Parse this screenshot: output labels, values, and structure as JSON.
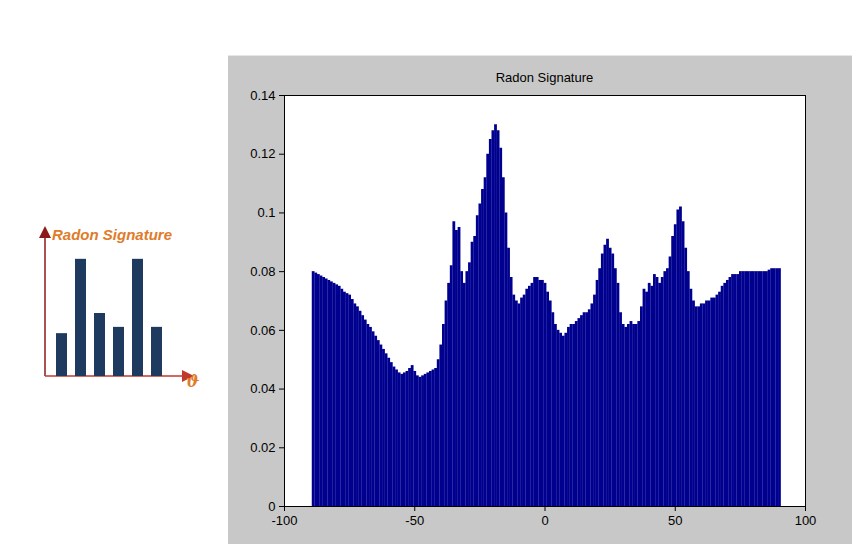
{
  "chart_data": [
    {
      "type": "bar",
      "title": "Radon Signature",
      "color": "#00008f",
      "xlim": [
        -100,
        100
      ],
      "xticks": [
        -100,
        -50,
        0,
        50,
        100
      ],
      "ylim": [
        0,
        0.14
      ],
      "yticks": [
        0,
        0.02,
        0.04,
        0.06,
        0.08,
        0.1,
        0.12,
        0.14
      ],
      "x": [
        -89,
        -88,
        -87,
        -86,
        -85,
        -84,
        -83,
        -82,
        -81,
        -80,
        -79,
        -78,
        -77,
        -76,
        -75,
        -74,
        -73,
        -72,
        -71,
        -70,
        -69,
        -68,
        -67,
        -66,
        -65,
        -64,
        -63,
        -62,
        -61,
        -60,
        -59,
        -58,
        -57,
        -56,
        -55,
        -54,
        -53,
        -52,
        -51,
        -50,
        -49,
        -48,
        -47,
        -46,
        -45,
        -44,
        -43,
        -42,
        -41,
        -40,
        -39,
        -38,
        -37,
        -36,
        -35,
        -34,
        -33,
        -32,
        -31,
        -30,
        -29,
        -28,
        -27,
        -26,
        -25,
        -24,
        -23,
        -22,
        -21,
        -20,
        -19,
        -18,
        -17,
        -16,
        -15,
        -14,
        -13,
        -12,
        -11,
        -10,
        -9,
        -8,
        -7,
        -6,
        -5,
        -4,
        -3,
        -2,
        -1,
        0,
        1,
        2,
        3,
        4,
        5,
        6,
        7,
        8,
        9,
        10,
        11,
        12,
        13,
        14,
        15,
        16,
        17,
        18,
        19,
        20,
        21,
        22,
        23,
        24,
        25,
        26,
        27,
        28,
        29,
        30,
        31,
        32,
        33,
        34,
        35,
        36,
        37,
        38,
        39,
        40,
        41,
        42,
        43,
        44,
        45,
        46,
        47,
        48,
        49,
        50,
        51,
        52,
        53,
        54,
        55,
        56,
        57,
        58,
        59,
        60,
        61,
        62,
        63,
        64,
        65,
        66,
        67,
        68,
        69,
        70,
        71,
        72,
        73,
        74,
        75,
        76,
        77,
        78,
        79,
        80,
        81,
        82,
        83,
        84,
        85,
        86,
        87,
        88,
        89,
        90
      ],
      "values": [
        0.08,
        0.0795,
        0.079,
        0.0785,
        0.078,
        0.0775,
        0.077,
        0.0765,
        0.076,
        0.0755,
        0.075,
        0.074,
        0.073,
        0.0725,
        0.072,
        0.0705,
        0.069,
        0.068,
        0.0665,
        0.065,
        0.0635,
        0.062,
        0.061,
        0.0595,
        0.058,
        0.0565,
        0.055,
        0.0535,
        0.052,
        0.0505,
        0.049,
        0.0475,
        0.0465,
        0.0455,
        0.045,
        0.0455,
        0.046,
        0.047,
        0.048,
        0.046,
        0.0445,
        0.044,
        0.0445,
        0.045,
        0.0455,
        0.046,
        0.0465,
        0.047,
        0.05,
        0.055,
        0.062,
        0.07,
        0.076,
        0.082,
        0.097,
        0.094,
        0.095,
        0.08,
        0.076,
        0.08,
        0.083,
        0.09,
        0.092,
        0.099,
        0.103,
        0.108,
        0.112,
        0.12,
        0.125,
        0.128,
        0.13,
        0.128,
        0.122,
        0.112,
        0.1,
        0.088,
        0.078,
        0.072,
        0.07,
        0.069,
        0.071,
        0.072,
        0.074,
        0.075,
        0.076,
        0.078,
        0.078,
        0.077,
        0.077,
        0.076,
        0.073,
        0.07,
        0.066,
        0.062,
        0.06,
        0.059,
        0.058,
        0.059,
        0.061,
        0.062,
        0.062,
        0.063,
        0.064,
        0.065,
        0.066,
        0.066,
        0.067,
        0.069,
        0.072,
        0.077,
        0.081,
        0.086,
        0.089,
        0.091,
        0.088,
        0.086,
        0.081,
        0.076,
        0.066,
        0.062,
        0.061,
        0.062,
        0.063,
        0.062,
        0.062,
        0.063,
        0.068,
        0.074,
        0.073,
        0.076,
        0.075,
        0.079,
        0.078,
        0.076,
        0.078,
        0.08,
        0.081,
        0.085,
        0.092,
        0.096,
        0.101,
        0.102,
        0.097,
        0.088,
        0.08,
        0.074,
        0.07,
        0.068,
        0.068,
        0.069,
        0.069,
        0.07,
        0.07,
        0.071,
        0.071,
        0.072,
        0.073,
        0.075,
        0.076,
        0.077,
        0.078,
        0.079,
        0.079,
        0.079,
        0.08,
        0.08,
        0.08,
        0.08,
        0.08,
        0.08,
        0.08,
        0.08,
        0.08,
        0.08,
        0.08,
        0.0805,
        0.081,
        0.081,
        0.081,
        0.081
      ]
    },
    {
      "type": "bar",
      "title": "Radon Signature",
      "xlabel": "ϑ",
      "color": "#1f3a5f",
      "ylim": [
        0,
        1
      ],
      "values": [
        0.34,
        0.93,
        0.5,
        0.39,
        0.93,
        0.39
      ],
      "tick_labels": false
    }
  ]
}
